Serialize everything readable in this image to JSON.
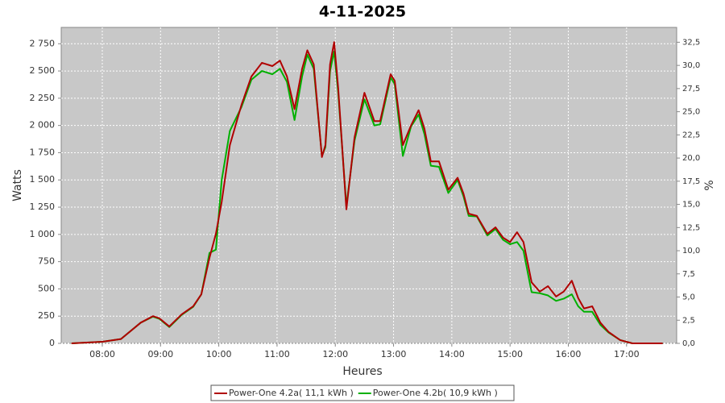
{
  "chart_data": {
    "type": "line",
    "title": "4-11-2025",
    "x_label": "Heures",
    "y_label": "Watts",
    "y2_label": "%",
    "x": [
      7.47,
      8.0,
      8.32,
      8.66,
      8.87,
      8.98,
      9.15,
      9.36,
      9.56,
      9.7,
      9.84,
      9.95,
      10.05,
      10.19,
      10.39,
      10.56,
      10.74,
      10.92,
      11.05,
      11.17,
      11.3,
      11.43,
      11.52,
      11.63,
      11.77,
      11.83,
      11.91,
      11.98,
      12.05,
      12.19,
      12.33,
      12.5,
      12.67,
      12.77,
      12.95,
      13.02,
      13.16,
      13.3,
      13.43,
      13.53,
      13.64,
      13.78,
      13.94,
      14.1,
      14.2,
      14.29,
      14.43,
      14.61,
      14.75,
      14.88,
      15.0,
      15.12,
      15.23,
      15.37,
      15.51,
      15.65,
      15.79,
      15.92,
      16.06,
      16.17,
      16.27,
      16.41,
      16.55,
      16.69,
      16.89,
      17.1,
      17.62
    ],
    "series": [
      {
        "name": "Power-One 4.2a( 11,1 kWh )",
        "color": "#b00000",
        "values": [
          0,
          15,
          40,
          190,
          250,
          230,
          155,
          265,
          340,
          450,
          785,
          1005,
          1300,
          1820,
          2190,
          2450,
          2575,
          2545,
          2595,
          2450,
          2150,
          2520,
          2690,
          2560,
          1710,
          1820,
          2560,
          2765,
          2340,
          1230,
          1890,
          2300,
          2040,
          2040,
          2470,
          2410,
          1820,
          2000,
          2140,
          1970,
          1670,
          1670,
          1410,
          1520,
          1375,
          1190,
          1170,
          1005,
          1065,
          970,
          930,
          1020,
          930,
          560,
          475,
          525,
          430,
          475,
          575,
          415,
          320,
          340,
          190,
          105,
          30,
          0,
          0
        ]
      },
      {
        "name": "Power-One 4.2b( 10,9 kWh )",
        "color": "#00b000",
        "values": [
          0,
          15,
          40,
          190,
          245,
          225,
          150,
          260,
          335,
          450,
          830,
          860,
          1500,
          1950,
          2170,
          2420,
          2500,
          2470,
          2520,
          2400,
          2050,
          2450,
          2650,
          2520,
          1720,
          1800,
          2500,
          2680,
          2300,
          1260,
          1860,
          2240,
          2000,
          2010,
          2440,
          2380,
          1720,
          1990,
          2100,
          1920,
          1630,
          1620,
          1380,
          1500,
          1350,
          1170,
          1165,
          990,
          1050,
          950,
          910,
          930,
          850,
          470,
          460,
          440,
          390,
          410,
          450,
          340,
          290,
          290,
          170,
          100,
          30,
          0,
          0
        ]
      }
    ],
    "xlim": [
      7.295,
      17.86
    ],
    "xticks": [
      {
        "value": 8,
        "label": "08:00"
      },
      {
        "value": 9,
        "label": "09:00"
      },
      {
        "value": 10,
        "label": "10:00"
      },
      {
        "value": 11,
        "label": "11:00"
      },
      {
        "value": 12,
        "label": "12:00"
      },
      {
        "value": 13,
        "label": "13:00"
      },
      {
        "value": 14,
        "label": "14:00"
      },
      {
        "value": 15,
        "label": "15:00"
      },
      {
        "value": 16,
        "label": "16:00"
      },
      {
        "value": 17,
        "label": "17:00"
      }
    ],
    "ylim": [
      0,
      2900
    ],
    "yticks": [
      0,
      250,
      500,
      750,
      {
        "value": 1000,
        "label": "1 000"
      },
      {
        "value": 1250,
        "label": "1 250"
      },
      {
        "value": 1500,
        "label": "1 500"
      },
      {
        "value": 1750,
        "label": "1 750"
      },
      {
        "value": 2000,
        "label": "2 000"
      },
      {
        "value": 2250,
        "label": "2 250"
      },
      {
        "value": 2500,
        "label": "2 500"
      },
      {
        "value": 2750,
        "label": "2 750"
      }
    ],
    "y2lim": [
      0,
      34.1
    ],
    "y2ticks": [
      {
        "value": 0,
        "label": "0,0"
      },
      {
        "value": 2.5,
        "label": "2,5"
      },
      {
        "value": 5,
        "label": "5,0"
      },
      {
        "value": 7.5,
        "label": "7,5"
      },
      {
        "value": 10,
        "label": "10,0"
      },
      {
        "value": 12.5,
        "label": "12,5"
      },
      {
        "value": 15,
        "label": "15,0"
      },
      {
        "value": 17.5,
        "label": "17,5"
      },
      {
        "value": 20,
        "label": "20,0"
      },
      {
        "value": 22.5,
        "label": "22,5"
      },
      {
        "value": 25,
        "label": "25,0"
      },
      {
        "value": 27.5,
        "label": "27,5"
      },
      {
        "value": 30,
        "label": "30,0"
      },
      {
        "value": 32.5,
        "label": "32,5"
      }
    ],
    "grid": true,
    "legend": "bottom"
  }
}
